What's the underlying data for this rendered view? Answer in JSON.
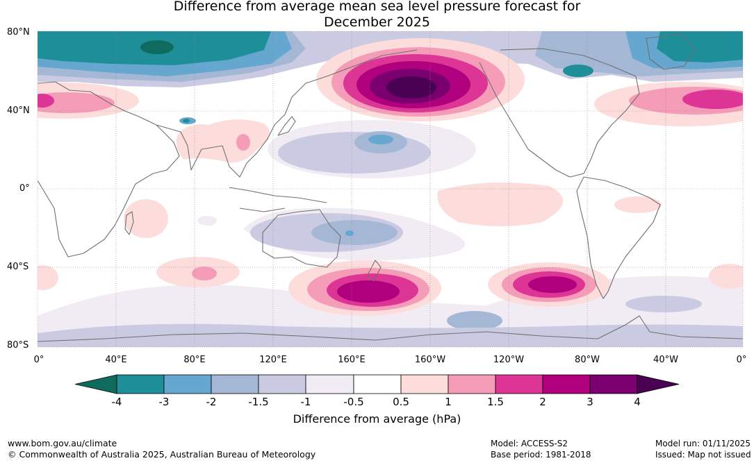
{
  "title": {
    "line1": "Difference from average mean sea level pressure forecast for",
    "line2": "December 2025"
  },
  "lat_labels": [
    "80°N",
    "40°N",
    "0°",
    "40°S",
    "80°S"
  ],
  "lon_labels": [
    "0°",
    "40°E",
    "80°E",
    "120°E",
    "160°E",
    "160°W",
    "120°W",
    "80°W",
    "40°W",
    "0°"
  ],
  "colorbar": {
    "title": "Difference from average (hPa)",
    "ticks": [
      "-4",
      "-3",
      "-2",
      "-1.5",
      "-1",
      "-0.5",
      "0.5",
      "1",
      "1.5",
      "2",
      "3",
      "4"
    ],
    "colors": {
      "below_-4": "#0e6b5e",
      "-4_-3": "#1e8f99",
      "-3_-2": "#66a7cf",
      "-2_-1.5": "#a4b8d6",
      "-1.5_-1": "#cacbe2",
      "-1_-0.5": "#f1ecf3",
      "-0.5_0.5": "#ffffff",
      "0.5_1": "#fddcdc",
      "1_1.5": "#f59db8",
      "1.5_2": "#dc3595",
      "2_3": "#b0007d",
      "3_4": "#7a0070",
      "above_4": "#4a0053"
    }
  },
  "footer": {
    "website": "www.bom.gov.au/climate",
    "copyright": "© Commonwealth of Australia 2025, Australian Bureau of Meteorology",
    "model": "Model: ACCESS-S2",
    "base_period": "Base period: 1981-2018",
    "model_run": "Model run: 01/11/2025",
    "issued": "Issued: Map not issued"
  }
}
